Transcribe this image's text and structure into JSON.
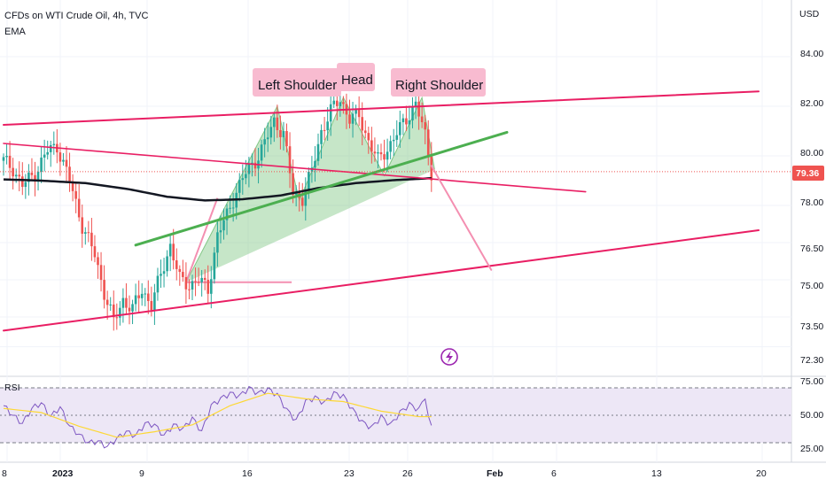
{
  "header": {
    "title": "CFDs on WTI Crude Oil, 4h, TVC",
    "indicator": "EMA",
    "currency": "USD"
  },
  "colors": {
    "up": "#26a69a",
    "down": "#ef5350",
    "ema": "#131722",
    "channel": "#e91e63",
    "trend_green": "#4caf50",
    "pattern_fill": "#81c784",
    "label_bg": "#f8bbd0",
    "projection": "#f48fb1",
    "rsi_line": "#7e57c2",
    "rsi_ma": "#fdd835",
    "rsi_band": "#ede7f6",
    "last_price": "#ef5350"
  },
  "annotations": {
    "left_shoulder": "Left Shoulder",
    "head": "Head",
    "right_shoulder": "Right Shoulder"
  },
  "price_axis": {
    "ticks": [
      "84.00",
      "82.00",
      "80.00",
      "78.00",
      "76.50",
      "75.00",
      "73.50",
      "72.30"
    ],
    "last_price": "79.36"
  },
  "rsi_panel": {
    "label": "RSI",
    "ticks": [
      "75.00",
      "50.00",
      "25.00"
    ]
  },
  "time_axis": {
    "ticks": [
      "8",
      "2023",
      "9",
      "16",
      "23",
      "26",
      "Feb",
      "6",
      "13",
      "20"
    ]
  },
  "chart_data": {
    "type": "candlestick",
    "title": "CFDs on WTI Crude Oil, 4h, TVC",
    "ylim": [
      72.0,
      85.2
    ],
    "x_ticks": [
      "8",
      "2023",
      "9",
      "16",
      "23",
      "26",
      "Feb",
      "6",
      "13",
      "20"
    ],
    "y_ticks": [
      84.0,
      82.0,
      80.0,
      78.0,
      76.5,
      75.0,
      73.5,
      72.3
    ],
    "last_price": 79.36,
    "close_path": [
      [
        0,
        79.8
      ],
      [
        3,
        79.5
      ],
      [
        6,
        78.8
      ],
      [
        10,
        79.3
      ],
      [
        14,
        80.2
      ],
      [
        17,
        80.4
      ],
      [
        21,
        79.0
      ],
      [
        25,
        77.2
      ],
      [
        29,
        76.0
      ],
      [
        32,
        74.5
      ],
      [
        35,
        73.3
      ],
      [
        38,
        74.2
      ],
      [
        41,
        73.8
      ],
      [
        44,
        74.6
      ],
      [
        47,
        74.0
      ],
      [
        50,
        75.2
      ],
      [
        53,
        76.4
      ],
      [
        56,
        75.0
      ],
      [
        59,
        74.8
      ],
      [
        62,
        75.0
      ],
      [
        65,
        74.6
      ],
      [
        68,
        76.8
      ],
      [
        71,
        77.6
      ],
      [
        74,
        78.6
      ],
      [
        77,
        79.3
      ],
      [
        80,
        79.8
      ],
      [
        83,
        80.5
      ],
      [
        86,
        81.4
      ],
      [
        89,
        80.9
      ],
      [
        92,
        78.5
      ],
      [
        95,
        78.3
      ],
      [
        98,
        79.4
      ],
      [
        101,
        81.0
      ],
      [
        104,
        81.8
      ],
      [
        107,
        82.3
      ],
      [
        110,
        81.5
      ],
      [
        113,
        81.6
      ],
      [
        116,
        80.6
      ],
      [
        119,
        79.8
      ],
      [
        122,
        80.3
      ],
      [
        125,
        80.9
      ],
      [
        128,
        81.5
      ],
      [
        131,
        82.1
      ],
      [
        134,
        80.8
      ],
      [
        136,
        79.36
      ]
    ],
    "ema": [
      [
        0,
        79.05
      ],
      [
        12,
        79.0
      ],
      [
        26,
        78.9
      ],
      [
        40,
        78.65
      ],
      [
        52,
        78.35
      ],
      [
        64,
        78.2
      ],
      [
        76,
        78.25
      ],
      [
        88,
        78.4
      ],
      [
        100,
        78.7
      ],
      [
        112,
        78.9
      ],
      [
        124,
        79.02
      ],
      [
        136,
        79.1
      ]
    ],
    "trendlines": {
      "upper_channel": [
        [
          0,
          81.25
        ],
        [
          240,
          82.6
        ]
      ],
      "lower_channel": [
        [
          0,
          72.95
        ],
        [
          240,
          77.0
        ]
      ],
      "descending": [
        [
          0,
          80.5
        ],
        [
          185,
          78.55
        ]
      ],
      "neckline": [
        [
          42,
          76.4
        ],
        [
          160,
          80.95
        ]
      ],
      "projection": [
        [
          136,
          79.6
        ],
        [
          155,
          75.4
        ]
      ]
    },
    "pattern_points": [
      [
        58,
        74.9
      ],
      [
        87,
        82.0
      ],
      [
        94,
        78.2
      ],
      [
        108,
        82.35
      ],
      [
        121,
        79.2
      ],
      [
        133,
        82.35
      ],
      [
        137,
        79.45
      ]
    ],
    "rsi": {
      "ylim": [
        20,
        80
      ],
      "levels": [
        70,
        50,
        30
      ],
      "values": [
        [
          0,
          57
        ],
        [
          3,
          50
        ],
        [
          6,
          44
        ],
        [
          9,
          55
        ],
        [
          12,
          59
        ],
        [
          15,
          49
        ],
        [
          18,
          56
        ],
        [
          21,
          42
        ],
        [
          24,
          36
        ],
        [
          27,
          30
        ],
        [
          30,
          31
        ],
        [
          33,
          27
        ],
        [
          36,
          33
        ],
        [
          39,
          38
        ],
        [
          42,
          35
        ],
        [
          45,
          44
        ],
        [
          48,
          43
        ],
        [
          51,
          35
        ],
        [
          54,
          43
        ],
        [
          57,
          40
        ],
        [
          60,
          48
        ],
        [
          63,
          38
        ],
        [
          66,
          57
        ],
        [
          69,
          62
        ],
        [
          72,
          66
        ],
        [
          75,
          64
        ],
        [
          78,
          70
        ],
        [
          81,
          66
        ],
        [
          84,
          69
        ],
        [
          87,
          65
        ],
        [
          90,
          54
        ],
        [
          93,
          46
        ],
        [
          96,
          60
        ],
        [
          99,
          63
        ],
        [
          102,
          59
        ],
        [
          105,
          66
        ],
        [
          108,
          64
        ],
        [
          111,
          54
        ],
        [
          114,
          45
        ],
        [
          117,
          41
        ],
        [
          120,
          49
        ],
        [
          123,
          43
        ],
        [
          126,
          52
        ],
        [
          129,
          58
        ],
        [
          132,
          54
        ],
        [
          134,
          64
        ],
        [
          135,
          48
        ],
        [
          136,
          42
        ]
      ],
      "ma": [
        [
          0,
          55
        ],
        [
          12,
          52
        ],
        [
          24,
          42
        ],
        [
          36,
          34
        ],
        [
          48,
          38
        ],
        [
          60,
          43
        ],
        [
          72,
          57
        ],
        [
          84,
          66
        ],
        [
          96,
          62
        ],
        [
          108,
          60
        ],
        [
          120,
          53
        ],
        [
          132,
          49
        ],
        [
          136,
          49
        ]
      ]
    }
  }
}
